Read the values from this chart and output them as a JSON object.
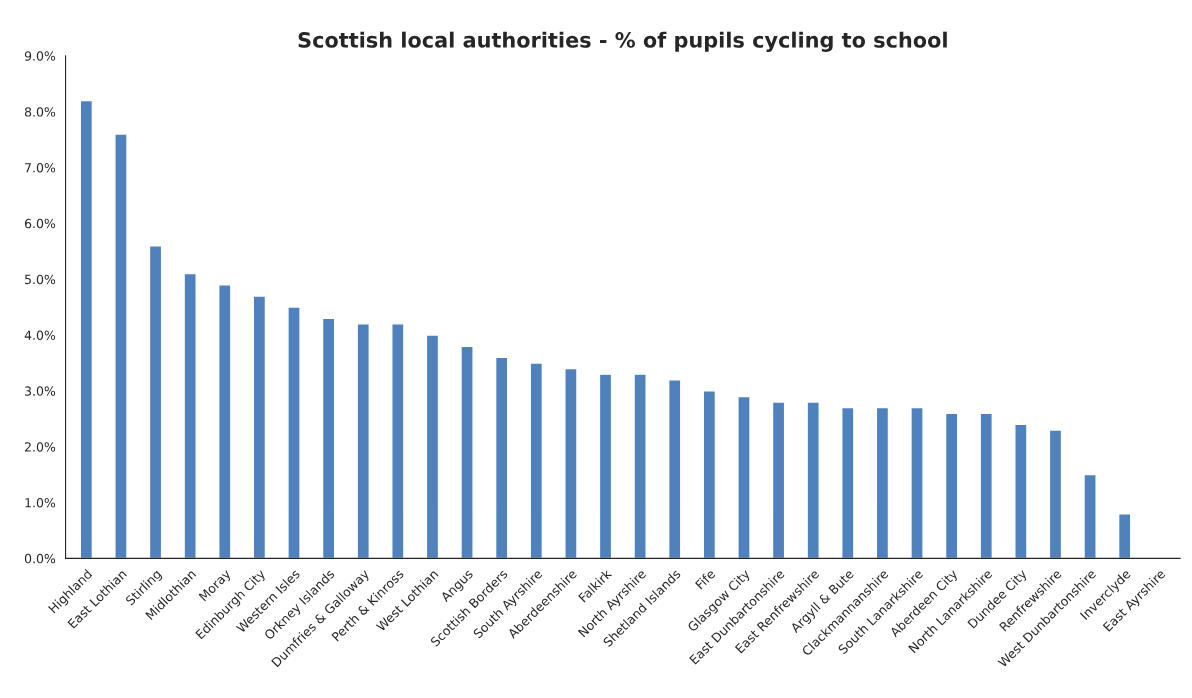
{
  "chart_data": {
    "type": "bar",
    "title": "Scottish local authorities - % of pupils cycling to school",
    "categories": [
      "Highland",
      "East Lothian",
      "Stirling",
      "Midlothian",
      "Moray",
      "Edinburgh City",
      "Western Isles",
      "Orkney Islands",
      "Dumfries & Galloway",
      "Perth & Kinross",
      "West Lothian",
      "Angus",
      "Scottish Borders",
      "South Ayrshire",
      "Aberdeenshire",
      "Falkirk",
      "North Ayrshire",
      "Shetland Islands",
      "Fife",
      "Glasgow City",
      "East Dunbartonshire",
      "East Renfrewshire",
      "Argyll & Bute",
      "Clackmannanshire",
      "South Lanarkshire",
      "Aberdeen City",
      "North Lanarkshire",
      "Dundee City",
      "Renfrewshire",
      "West Dunbartonshire",
      "Inverclyde",
      "East Ayrshire"
    ],
    "values": [
      8.2,
      7.6,
      5.6,
      5.1,
      4.9,
      4.7,
      4.5,
      4.3,
      4.2,
      4.2,
      4.0,
      3.8,
      3.6,
      3.5,
      3.4,
      3.3,
      3.3,
      3.2,
      3.0,
      2.9,
      2.8,
      2.8,
      2.7,
      2.7,
      2.7,
      2.6,
      2.6,
      2.4,
      2.3,
      1.5,
      0.8,
      null
    ],
    "color": "#4f81bd",
    "ylim": [
      0,
      9
    ],
    "yticks": [
      {
        "value": 0,
        "label": "0.0%"
      },
      {
        "value": 1,
        "label": "1.0%"
      },
      {
        "value": 2,
        "label": "2.0%"
      },
      {
        "value": 3,
        "label": "3.0%"
      },
      {
        "value": 4,
        "label": "4.0%"
      },
      {
        "value": 5,
        "label": "5.0%"
      },
      {
        "value": 6,
        "label": "6.0%"
      },
      {
        "value": 7,
        "label": "7.0%"
      },
      {
        "value": 8,
        "label": "8.0%"
      },
      {
        "value": 9,
        "label": "9.0%"
      }
    ],
    "grid": false
  }
}
